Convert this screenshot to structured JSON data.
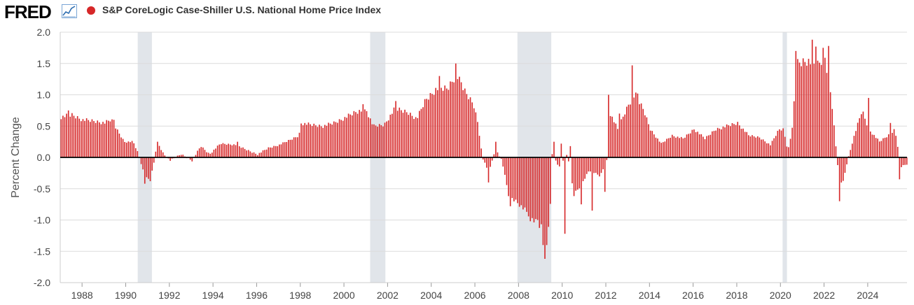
{
  "header": {
    "logo": "FRED",
    "logo_icon": "trend-chart-icon",
    "legend_label": "S&P CoreLogic Case-Shiller U.S. National Home Price Index",
    "legend_color": "#d62728"
  },
  "chart_data": {
    "type": "bar",
    "title": "S&P CoreLogic Case-Shiller U.S. National Home Price Index",
    "ylabel": "Percent Change",
    "xlabel": "",
    "ylim": [
      -2.0,
      2.0
    ],
    "xlim": [
      1987.0,
      2025.8
    ],
    "yticks": [
      "2.0",
      "1.5",
      "1.0",
      "0.5",
      "0.0",
      "-0.5",
      "-1.0",
      "-1.5",
      "-2.0"
    ],
    "ytick_values": [
      2.0,
      1.5,
      1.0,
      0.5,
      0.0,
      -0.5,
      -1.0,
      -1.5,
      -2.0
    ],
    "xticks": [
      "1988",
      "1990",
      "1992",
      "1994",
      "1996",
      "1998",
      "2000",
      "2002",
      "2004",
      "2006",
      "2008",
      "2010",
      "2012",
      "2014",
      "2016",
      "2018",
      "2020",
      "2022",
      "2024"
    ],
    "xtick_values": [
      1988,
      1990,
      1992,
      1994,
      1996,
      1998,
      2000,
      2002,
      2004,
      2006,
      2008,
      2010,
      2012,
      2014,
      2016,
      2018,
      2020,
      2022,
      2024
    ],
    "grid": true,
    "bar_color": "#d62728",
    "recession_color": "#e1e5ea",
    "recessions": [
      [
        1990.55,
        1991.2
      ],
      [
        2001.2,
        2001.9
      ],
      [
        2007.95,
        2009.5
      ],
      [
        2020.1,
        2020.3
      ]
    ],
    "start_year": 1987.0,
    "frequency": "monthly",
    "keyframes": [
      [
        1987.0,
        0.65
      ],
      [
        1987.5,
        0.68
      ],
      [
        1988.0,
        0.6
      ],
      [
        1988.5,
        0.58
      ],
      [
        1989.0,
        0.55
      ],
      [
        1989.3,
        0.6
      ],
      [
        1989.6,
        0.42
      ],
      [
        1989.9,
        0.25
      ],
      [
        1990.3,
        0.25
      ],
      [
        1990.55,
        0.05
      ],
      [
        1990.75,
        -0.2
      ],
      [
        1991.0,
        -0.35
      ],
      [
        1991.2,
        -0.2
      ],
      [
        1991.4,
        0.25
      ],
      [
        1991.7,
        0.05
      ],
      [
        1992.0,
        -0.05
      ],
      [
        1992.5,
        0.05
      ],
      [
        1993.0,
        -0.05
      ],
      [
        1993.4,
        0.18
      ],
      [
        1993.8,
        0.05
      ],
      [
        1994.3,
        0.22
      ],
      [
        1995.0,
        0.2
      ],
      [
        1995.5,
        0.12
      ],
      [
        1996.0,
        0.05
      ],
      [
        1996.5,
        0.15
      ],
      [
        1997.0,
        0.2
      ],
      [
        1997.5,
        0.28
      ],
      [
        1997.9,
        0.35
      ],
      [
        1998.0,
        0.55
      ],
      [
        1998.5,
        0.52
      ],
      [
        1999.0,
        0.5
      ],
      [
        1999.5,
        0.55
      ],
      [
        2000.0,
        0.63
      ],
      [
        2000.5,
        0.72
      ],
      [
        2001.0,
        0.75
      ],
      [
        2001.3,
        0.5
      ],
      [
        2001.8,
        0.52
      ],
      [
        2002.3,
        0.78
      ],
      [
        2002.9,
        0.72
      ],
      [
        2003.3,
        0.62
      ],
      [
        2003.7,
        0.92
      ],
      [
        2004.2,
        1.1
      ],
      [
        2004.7,
        1.1
      ],
      [
        2005.1,
        1.32
      ],
      [
        2005.5,
        1.05
      ],
      [
        2005.9,
        0.85
      ],
      [
        2006.1,
        0.55
      ],
      [
        2006.3,
        0.0
      ],
      [
        2006.6,
        -0.25
      ],
      [
        2006.9,
        0.15
      ],
      [
        2007.2,
        -0.05
      ],
      [
        2007.5,
        -0.6
      ],
      [
        2008.0,
        -0.75
      ],
      [
        2008.5,
        -0.95
      ],
      [
        2009.0,
        -1.1
      ],
      [
        2009.2,
        -1.35
      ],
      [
        2009.4,
        -0.95
      ],
      [
        2009.5,
        0.05
      ],
      [
        2009.8,
        -0.15
      ],
      [
        2010.2,
        0.05
      ],
      [
        2010.5,
        -0.6
      ],
      [
        2010.8,
        -0.45
      ],
      [
        2011.2,
        -0.2
      ],
      [
        2011.7,
        -0.3
      ],
      [
        2012.0,
        -0.05
      ],
      [
        2012.1,
        0.75
      ],
      [
        2012.5,
        0.45
      ],
      [
        2013.0,
        0.85
      ],
      [
        2013.3,
        1.0
      ],
      [
        2013.7,
        0.75
      ],
      [
        2014.0,
        0.45
      ],
      [
        2014.5,
        0.22
      ],
      [
        2015.0,
        0.35
      ],
      [
        2015.5,
        0.3
      ],
      [
        2016.0,
        0.45
      ],
      [
        2016.5,
        0.3
      ],
      [
        2017.0,
        0.45
      ],
      [
        2017.5,
        0.5
      ],
      [
        2018.0,
        0.55
      ],
      [
        2018.5,
        0.35
      ],
      [
        2019.0,
        0.32
      ],
      [
        2019.5,
        0.2
      ],
      [
        2019.9,
        0.45
      ],
      [
        2020.1,
        0.45
      ],
      [
        2020.3,
        0.1
      ],
      [
        2020.5,
        0.45
      ],
      [
        2020.7,
        1.5
      ],
      [
        2021.2,
        1.55
      ],
      [
        2021.6,
        1.45
      ],
      [
        2022.0,
        1.6
      ],
      [
        2022.3,
        0.95
      ],
      [
        2022.6,
        -0.2
      ],
      [
        2022.8,
        -0.45
      ],
      [
        2023.0,
        -0.1
      ],
      [
        2023.3,
        0.3
      ],
      [
        2023.7,
        0.75
      ],
      [
        2024.0,
        0.45
      ],
      [
        2024.5,
        0.25
      ],
      [
        2024.9,
        0.35
      ],
      [
        2025.2,
        0.45
      ],
      [
        2025.5,
        -0.15
      ],
      [
        2025.8,
        -0.1
      ]
    ],
    "spikes": [
      [
        1987.3,
        0.75
      ],
      [
        1989.4,
        0.6
      ],
      [
        1990.8,
        -0.42
      ],
      [
        1991.1,
        -0.38
      ],
      [
        1995.1,
        0.25
      ],
      [
        2000.8,
        0.85
      ],
      [
        2002.3,
        0.9
      ],
      [
        2004.3,
        1.3
      ],
      [
        2005.1,
        1.5
      ],
      [
        2005.3,
        1.2
      ],
      [
        2006.6,
        -0.4
      ],
      [
        2006.9,
        0.25
      ],
      [
        2007.6,
        -0.78
      ],
      [
        2008.5,
        -1.02
      ],
      [
        2008.8,
        -1.0
      ],
      [
        2009.1,
        -1.4
      ],
      [
        2009.15,
        -1.62
      ],
      [
        2009.25,
        -1.4
      ],
      [
        2009.6,
        0.25
      ],
      [
        2009.9,
        0.22
      ],
      [
        2010.1,
        -1.22
      ],
      [
        2010.3,
        0.18
      ],
      [
        2010.8,
        -0.75
      ],
      [
        2011.3,
        -0.85
      ],
      [
        2011.9,
        -0.55
      ],
      [
        2012.1,
        1.0
      ],
      [
        2012.6,
        0.7
      ],
      [
        2013.2,
        1.47
      ],
      [
        2013.4,
        1.02
      ],
      [
        2020.65,
        1.7
      ],
      [
        2021.4,
        1.88
      ],
      [
        2021.6,
        1.77
      ],
      [
        2021.9,
        1.75
      ],
      [
        2022.2,
        1.78
      ],
      [
        2022.7,
        -0.7
      ],
      [
        2024.0,
        0.95
      ],
      [
        2025.0,
        0.55
      ],
      [
        2025.4,
        -0.35
      ]
    ]
  }
}
